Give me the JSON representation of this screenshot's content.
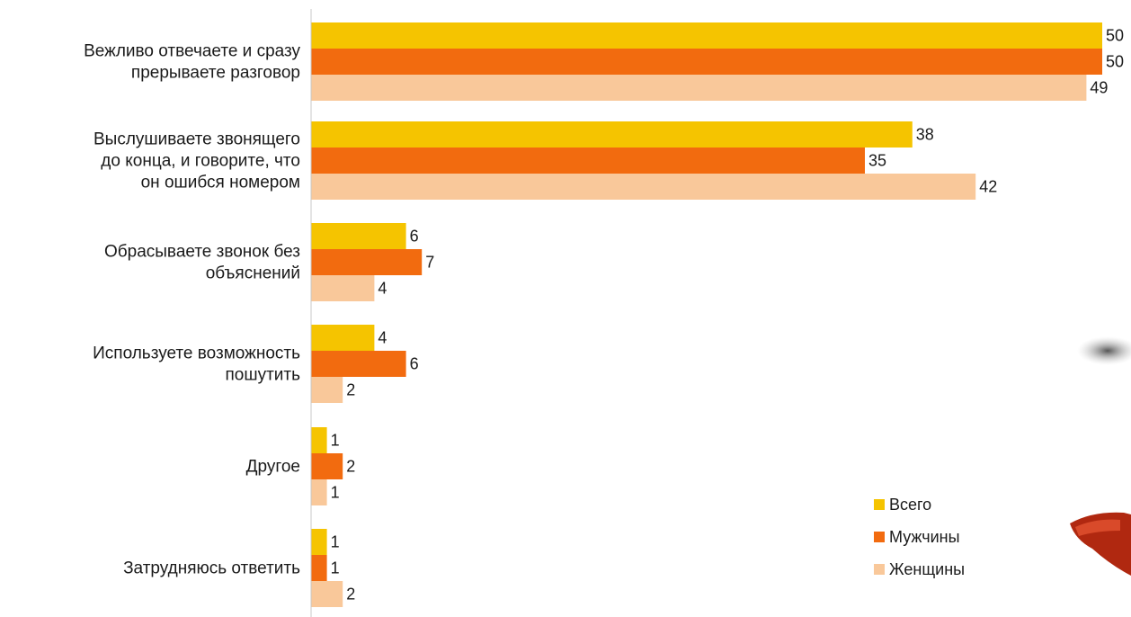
{
  "chart_data": {
    "type": "bar",
    "orientation": "horizontal",
    "categories": [
      [
        "Вежливо отвечаете и сразу",
        "прерываете разговор"
      ],
      [
        "Выслушиваете звонящего",
        "до конца, и говорите, что",
        "он ошибся номером"
      ],
      [
        "Обрасываете звонок без",
        "объяснений"
      ],
      [
        "Используете возможность",
        "пошутить"
      ],
      [
        "Другое"
      ],
      [
        "Затрудняюсь ответить"
      ]
    ],
    "series": [
      {
        "name": "Всего",
        "color": "#F5C400",
        "values": [
          50,
          38,
          6,
          4,
          1,
          1
        ]
      },
      {
        "name": "Мужчины",
        "color": "#F26B0F",
        "values": [
          50,
          35,
          7,
          6,
          2,
          1
        ]
      },
      {
        "name": "Женщины",
        "color": "#F9C89A",
        "values": [
          49,
          42,
          4,
          2,
          1,
          2
        ]
      }
    ],
    "xlim": [
      0,
      50
    ],
    "legend_position": "bottom-right",
    "grid": false
  }
}
